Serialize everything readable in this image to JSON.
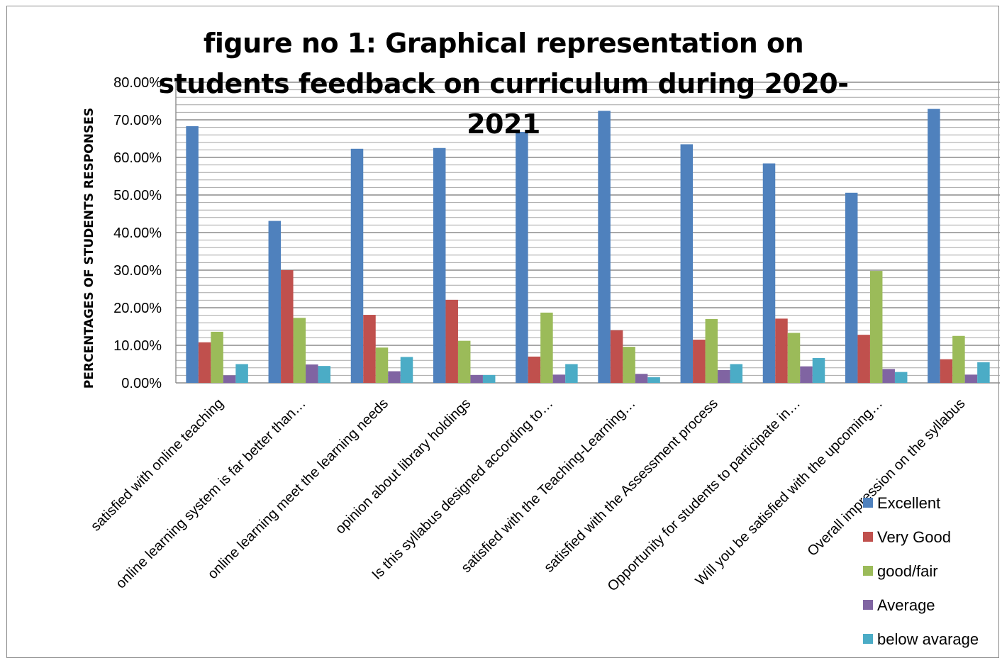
{
  "chart_data": {
    "type": "bar",
    "title": "figure no 1: Graphical representation on students feedback on  curriculum during 2020-2021",
    "xlabel": "",
    "ylabel": "PERCENTAGES OF STUDENTS RESPONSES",
    "ylim": [
      0,
      0.8
    ],
    "y_ticks": [
      "0.00%",
      "10.00%",
      "20.00%",
      "30.00%",
      "40.00%",
      "50.00%",
      "60.00%",
      "70.00%",
      "80.00%"
    ],
    "grid": true,
    "legend_position": "bottom-right",
    "categories": [
      "satisfied with online teaching",
      "online learning system is far better than…",
      "online learning meet the learning needs",
      "opinion about library holdings",
      "Is this syllabus designed according to…",
      "satisfied with the Teaching-Learning…",
      "satisfied with the Assessment process",
      "Opportunity for students to participate in…",
      "Will you be satisfied with the upcoming…",
      "Overall impression on the syllabus"
    ],
    "series": [
      {
        "name": "Excellent",
        "color": "#4f81bd",
        "values": [
          0.683,
          0.431,
          0.623,
          0.625,
          0.668,
          0.724,
          0.635,
          0.584,
          0.506,
          0.729
        ]
      },
      {
        "name": "Very Good",
        "color": "#c0504d",
        "values": [
          0.108,
          0.3,
          0.181,
          0.221,
          0.07,
          0.14,
          0.115,
          0.171,
          0.128,
          0.063
        ]
      },
      {
        "name": "good/fair",
        "color": "#9bbb59",
        "values": [
          0.136,
          0.173,
          0.094,
          0.112,
          0.187,
          0.096,
          0.17,
          0.133,
          0.298,
          0.125
        ]
      },
      {
        "name": "Average",
        "color": "#8064a2",
        "values": [
          0.02,
          0.049,
          0.031,
          0.021,
          0.022,
          0.024,
          0.034,
          0.044,
          0.037,
          0.022
        ]
      },
      {
        "name": "below avarage",
        "color": "#4bacc6",
        "values": [
          0.05,
          0.045,
          0.069,
          0.021,
          0.05,
          0.015,
          0.05,
          0.066,
          0.029,
          0.055
        ]
      }
    ]
  }
}
